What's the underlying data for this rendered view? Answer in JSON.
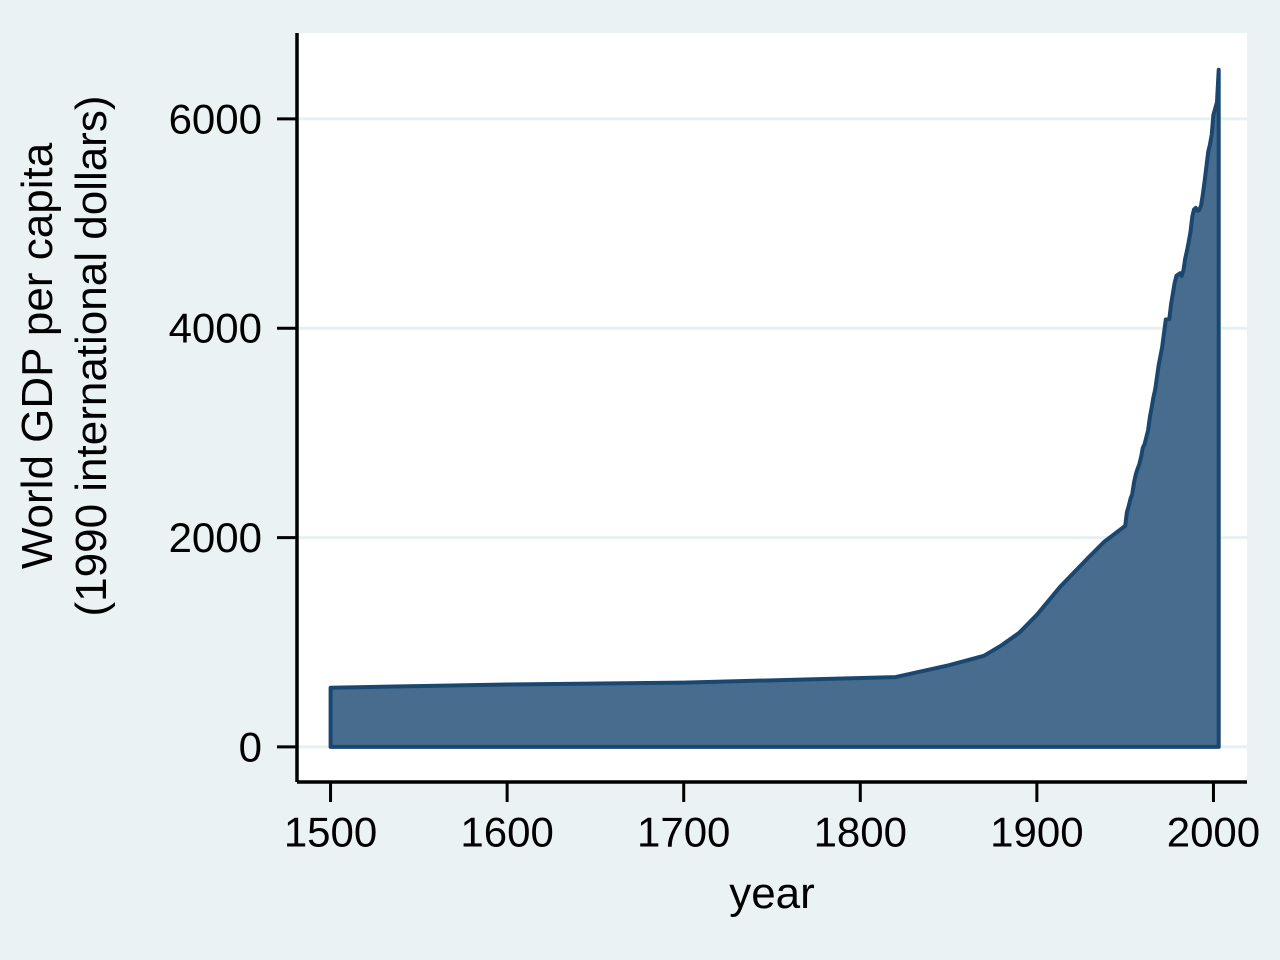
{
  "chart_data": {
    "type": "area",
    "title": "",
    "xlabel": "year",
    "ylabel_lines": [
      "World GDP per capita",
      "(1990 international dollars)"
    ],
    "x_ticks": [
      1500,
      1600,
      1700,
      1800,
      1900,
      2000
    ],
    "y_ticks": [
      0,
      2000,
      4000,
      6000
    ],
    "xlim": [
      1481,
      2019
    ],
    "ylim": [
      -335,
      6820
    ],
    "grid": true,
    "legend": "none",
    "series": [
      {
        "name": "World GDP per capita (1990 international dollars)",
        "baseline": 0,
        "points": [
          [
            1500,
            566
          ],
          [
            1600,
            596
          ],
          [
            1700,
            615
          ],
          [
            1820,
            667
          ],
          [
            1850,
            780
          ],
          [
            1870,
            871
          ],
          [
            1880,
            971
          ],
          [
            1890,
            1090
          ],
          [
            1900,
            1262
          ],
          [
            1913,
            1526
          ],
          [
            1929,
            1806
          ],
          [
            1938,
            1958
          ],
          [
            1950,
            2111
          ],
          [
            1951,
            2243
          ],
          [
            1952,
            2301
          ],
          [
            1953,
            2371
          ],
          [
            1954,
            2413
          ],
          [
            1955,
            2526
          ],
          [
            1956,
            2604
          ],
          [
            1957,
            2655
          ],
          [
            1958,
            2700
          ],
          [
            1959,
            2771
          ],
          [
            1960,
            2858
          ],
          [
            1961,
            2893
          ],
          [
            1962,
            2958
          ],
          [
            1963,
            3026
          ],
          [
            1964,
            3152
          ],
          [
            1965,
            3239
          ],
          [
            1966,
            3340
          ],
          [
            1967,
            3414
          ],
          [
            1968,
            3529
          ],
          [
            1969,
            3649
          ],
          [
            1970,
            3736
          ],
          [
            1971,
            3823
          ],
          [
            1972,
            3952
          ],
          [
            1973,
            4083
          ],
          [
            1974,
            4085
          ],
          [
            1975,
            4087
          ],
          [
            1976,
            4231
          ],
          [
            1977,
            4327
          ],
          [
            1978,
            4431
          ],
          [
            1979,
            4501
          ],
          [
            1980,
            4511
          ],
          [
            1981,
            4524
          ],
          [
            1982,
            4500
          ],
          [
            1983,
            4552
          ],
          [
            1984,
            4665
          ],
          [
            1985,
            4741
          ],
          [
            1986,
            4824
          ],
          [
            1987,
            4920
          ],
          [
            1988,
            5066
          ],
          [
            1989,
            5135
          ],
          [
            1990,
            5149
          ],
          [
            1991,
            5122
          ],
          [
            1992,
            5130
          ],
          [
            1993,
            5173
          ],
          [
            1994,
            5282
          ],
          [
            1995,
            5404
          ],
          [
            1996,
            5544
          ],
          [
            1997,
            5684
          ],
          [
            1998,
            5752
          ],
          [
            1999,
            5848
          ],
          [
            2000,
            6038
          ],
          [
            2001,
            6098
          ],
          [
            2002,
            6160
          ],
          [
            2003,
            6469
          ]
        ]
      }
    ],
    "colors": {
      "page_bg": "#EAF2F3",
      "plot_bg": "#FFFFFF",
      "grid": "#E7F0F2",
      "area_fill": "#486C8E",
      "area_line": "#1A476F",
      "axis": "#000000",
      "text": "#000000"
    }
  }
}
